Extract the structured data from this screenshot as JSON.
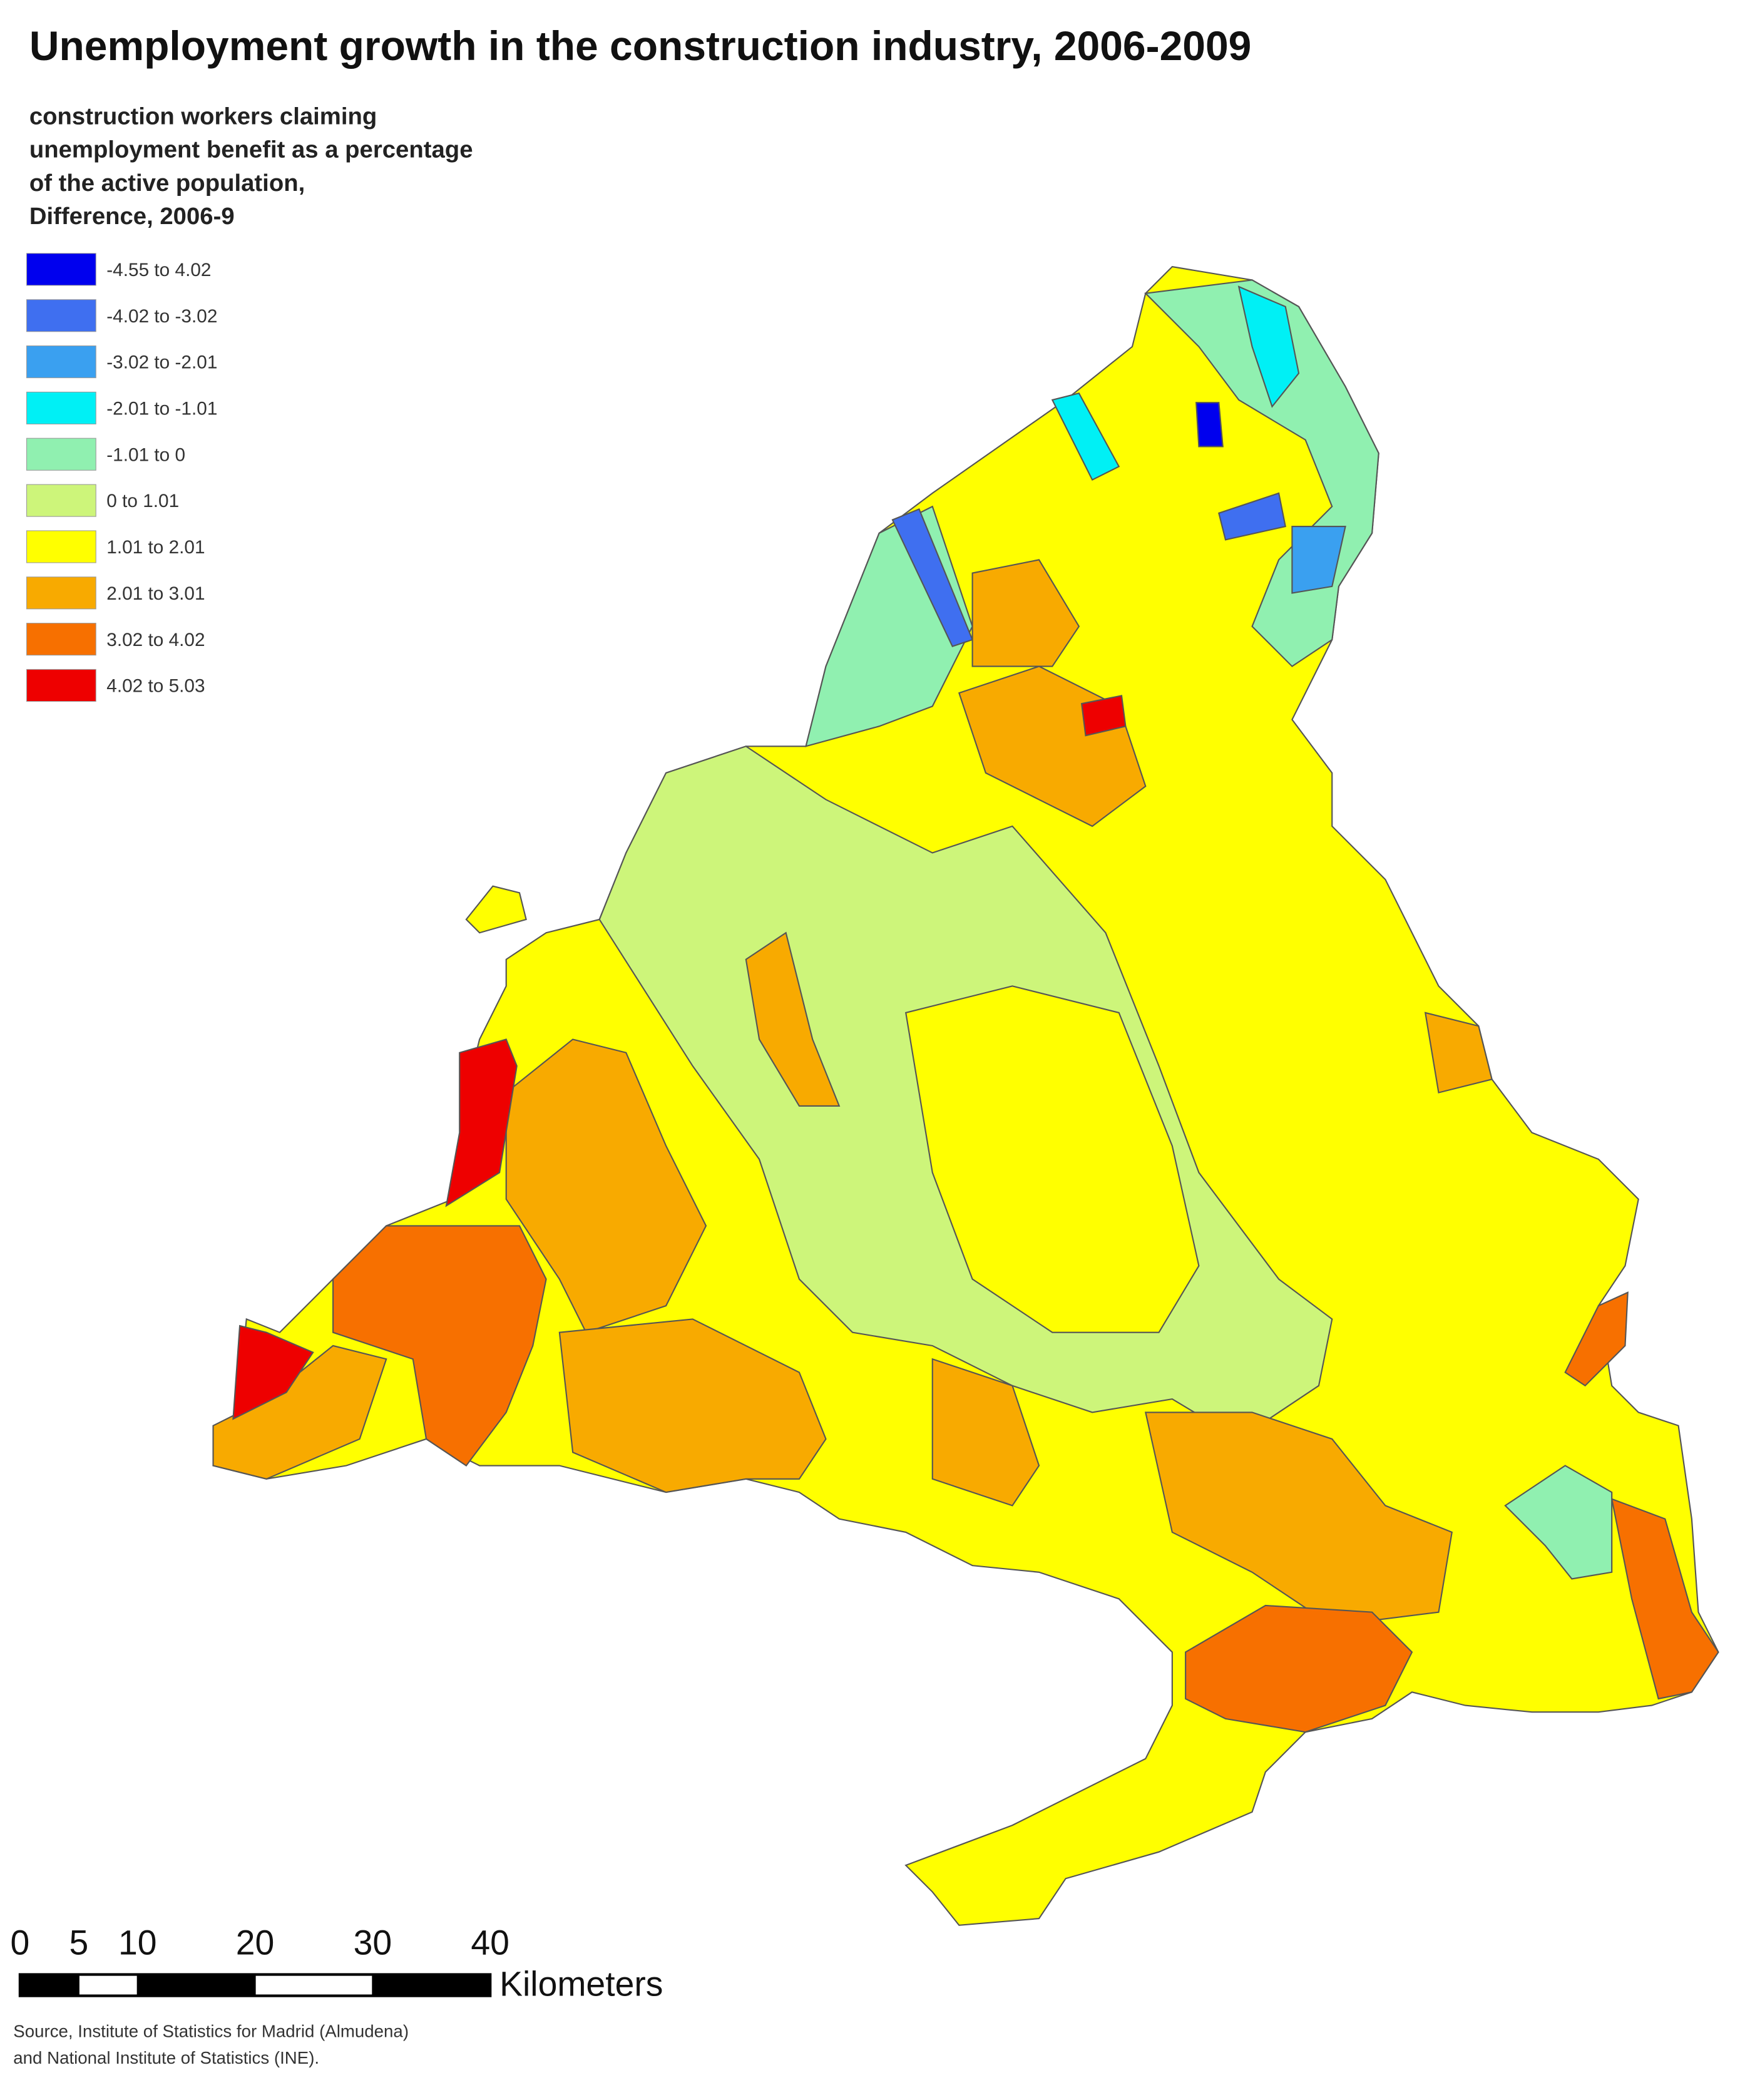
{
  "title": "Unemployment growth in the construction industry, 2006-2009",
  "subtitle_lines": [
    "construction workers claiming",
    "unemployment benefit as a percentage",
    "of the active population,",
    "Difference, 2006-9"
  ],
  "legend": [
    {
      "label": "-4.55 to 4.02",
      "color": "#0000ee"
    },
    {
      "label": "-4.02 to -3.02",
      "color": "#3f6ff0"
    },
    {
      "label": "-3.02 to -2.01",
      "color": "#3aa0f0"
    },
    {
      "label": "-2.01 to -1.01",
      "color": "#00f0f5"
    },
    {
      "label": "-1.01 to 0",
      "color": "#90f0b0"
    },
    {
      "label": "0 to 1.01",
      "color": "#cdf57a"
    },
    {
      "label": "1.01 to 2.01",
      "color": "#ffff00"
    },
    {
      "label": "2.01 to 3.01",
      "color": "#f8aa00"
    },
    {
      "label": "3.02 to 4.02",
      "color": "#f77000"
    },
    {
      "label": "4.02 to 5.03",
      "color": "#ee0000"
    }
  ],
  "scale_bar": {
    "ticks": [
      0,
      5,
      10,
      20,
      30,
      40
    ],
    "unit": "Kilometers"
  },
  "source_lines": [
    "Source, Institute of Statistics for Madrid (Almudena)",
    "and National Institute of Statistics (INE)."
  ]
}
